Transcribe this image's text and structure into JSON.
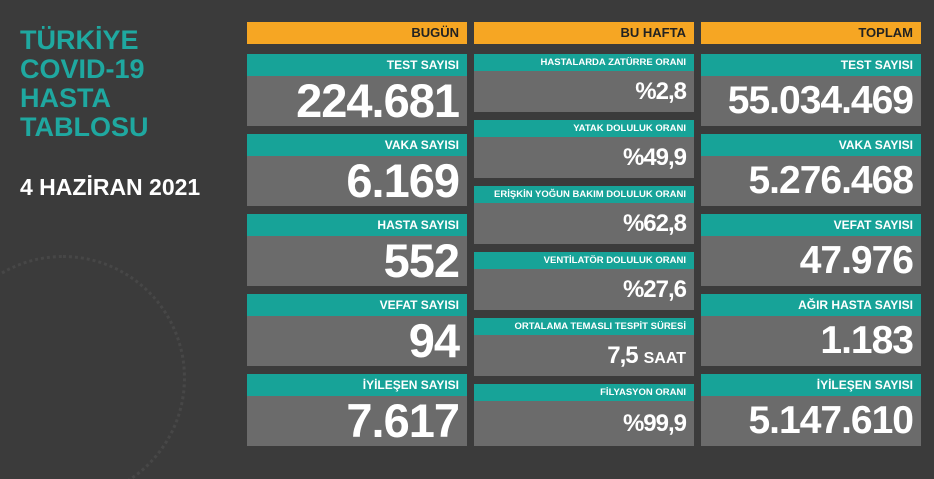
{
  "title": {
    "lines": [
      "TÜRKİYE",
      "COVID-19",
      "HASTA",
      "TABLOSU"
    ],
    "date": "4 HAZİRAN 2021"
  },
  "columns": [
    {
      "header": "BUGÜN",
      "cards": [
        {
          "label": "TEST SAYISI",
          "value": "224.681"
        },
        {
          "label": "VAKA SAYISI",
          "value": "6.169"
        },
        {
          "label": "HASTA SAYISI",
          "value": "552"
        },
        {
          "label": "VEFAT SAYISI",
          "value": "94"
        },
        {
          "label": "İYİLEŞEN SAYISI",
          "value": "7.617"
        }
      ]
    },
    {
      "header": "BU HAFTA",
      "cards": [
        {
          "label": "HASTALARDA ZATÜRRE ORANI",
          "value": "%2,8"
        },
        {
          "label": "YATAK DOLULUK ORANI",
          "value": "%49,9"
        },
        {
          "label": "ERİŞKİN YOĞUN BAKIM DOLULUK ORANI",
          "value": "%62,8"
        },
        {
          "label": "VENTİLATÖR DOLULUK ORANI",
          "value": "%27,6"
        },
        {
          "label": "ORTALAMA TEMASLI TESPİT SÜRESİ",
          "value": "7,5",
          "unit": "SAAT"
        },
        {
          "label": "FİLYASYON ORANI",
          "value": "%99,9"
        }
      ]
    },
    {
      "header": "TOPLAM",
      "cards": [
        {
          "label": "TEST SAYISI",
          "value": "55.034.469"
        },
        {
          "label": "VAKA SAYISI",
          "value": "5.276.468"
        },
        {
          "label": "VEFAT SAYISI",
          "value": "47.976"
        },
        {
          "label": "AĞIR HASTA SAYISI",
          "value": "1.183"
        },
        {
          "label": "İYİLEŞEN SAYISI",
          "value": "5.147.610"
        }
      ]
    }
  ]
}
